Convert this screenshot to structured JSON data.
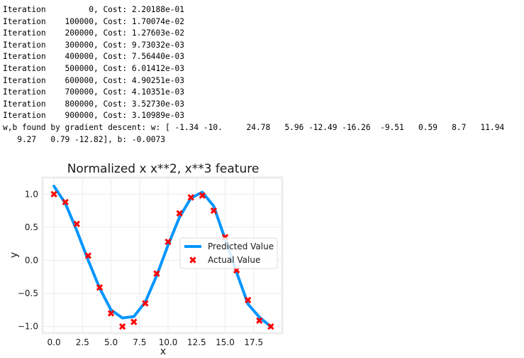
{
  "console": {
    "lines": [
      "Iteration         0, Cost: 2.20188e-01",
      "Iteration    100000, Cost: 1.70074e-02",
      "Iteration    200000, Cost: 1.27603e-02",
      "Iteration    300000, Cost: 9.73032e-03",
      "Iteration    400000, Cost: 7.56440e-03",
      "Iteration    500000, Cost: 6.01412e-03",
      "Iteration    600000, Cost: 4.90251e-03",
      "Iteration    700000, Cost: 4.10351e-03",
      "Iteration    800000, Cost: 3.52730e-03",
      "Iteration    900000, Cost: 3.10989e-03",
      "w,b found by gradient descent: w: [ -1.34 -10.     24.78   5.96 -12.49 -16.26  -9.51   0.59   8.7   11.94",
      "   9.27   0.79 -12.82], b: -0.0073"
    ]
  },
  "chart_data": {
    "type": "line",
    "title": "Normalized x x**2, x**3 feature",
    "xlabel": "x",
    "ylabel": "y",
    "xlim": [
      -1,
      20
    ],
    "ylim": [
      -1.1,
      1.25
    ],
    "xticks": [
      0.0,
      2.5,
      5.0,
      7.5,
      10.0,
      12.5,
      15.0,
      17.5
    ],
    "xtick_labels": [
      "0.0",
      "2.5",
      "5.0",
      "7.5",
      "10.0",
      "12.5",
      "15.0",
      "17.5"
    ],
    "yticks": [
      1.0,
      0.5,
      0.0,
      -0.5,
      -1.0
    ],
    "ytick_labels": [
      "1.0",
      "0.5",
      "0.0",
      "−0.5",
      "−1.0"
    ],
    "grid": true,
    "legend_position": "center-right",
    "series": [
      {
        "name": "Predicted Value",
        "kind": "line",
        "color": "#0096ff",
        "x": [
          0,
          1,
          2,
          3,
          4,
          5,
          6,
          7,
          8,
          9,
          10,
          11,
          12,
          13,
          14,
          15,
          16,
          17,
          18,
          19
        ],
        "y": [
          1.12,
          0.86,
          0.45,
          0.0,
          -0.42,
          -0.75,
          -0.87,
          -0.85,
          -0.63,
          -0.23,
          0.23,
          0.65,
          0.94,
          1.03,
          0.82,
          0.32,
          -0.18,
          -0.66,
          -0.86,
          -1.0
        ]
      },
      {
        "name": "Actual Value",
        "kind": "scatter",
        "marker": "x",
        "color": "#ff0000",
        "x": [
          0,
          1,
          2,
          3,
          4,
          5,
          6,
          7,
          8,
          9,
          10,
          11,
          12,
          13,
          14,
          15,
          16,
          17,
          18,
          19
        ],
        "y": [
          1.0,
          0.88,
          0.55,
          0.07,
          -0.41,
          -0.8,
          -1.0,
          -0.93,
          -0.65,
          -0.2,
          0.28,
          0.71,
          0.95,
          0.98,
          0.75,
          0.35,
          -0.15,
          -0.6,
          -0.91,
          -1.0
        ]
      }
    ]
  }
}
